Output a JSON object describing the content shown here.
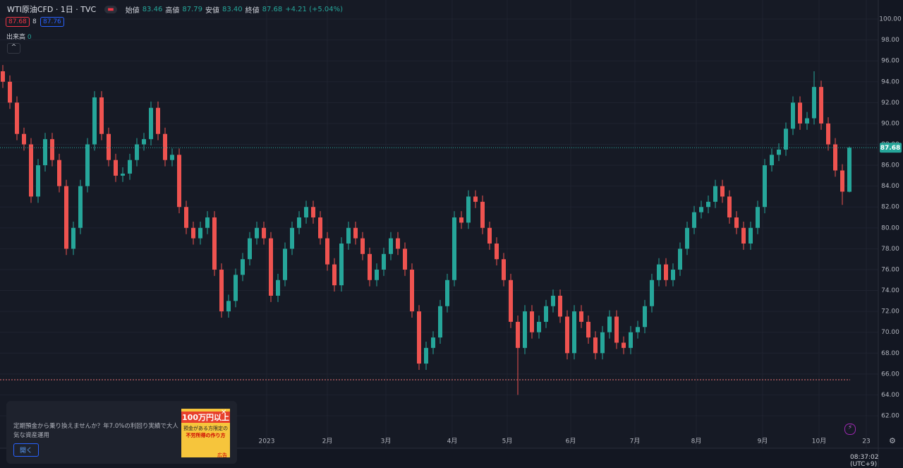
{
  "header": {
    "symbol": "WTI原油CFD · 1日 · TVC",
    "open_label": "始値",
    "open": "83.46",
    "high_label": "高値",
    "high": "87.79",
    "low_label": "安値",
    "low": "83.40",
    "close_label": "終値",
    "close": "87.68",
    "change": "+4.21 (+5.04%)",
    "bid": "87.68",
    "spread": "8",
    "ask": "87.76",
    "volume_label": "出来高",
    "volume": "0"
  },
  "ad": {
    "text": "定期預金から乗り換えませんか？年7.0%の利回り実績で大人気な資産運用",
    "button": "開く",
    "image_lines": [
      "100万円以上",
      "預金がある方限定の",
      "不労所得の作り方"
    ],
    "image_badge": "広告"
  },
  "clock": "08:37:02 (UTC+9)",
  "chart_data": {
    "type": "candlestick",
    "up_color": "#26a69a",
    "down_color": "#ef5350",
    "grid": true,
    "hline": {
      "value": 65.45,
      "color": "#e57373"
    },
    "open": [
      95,
      94,
      92,
      89,
      88,
      83,
      86,
      88.5,
      86.5,
      84,
      78,
      80,
      84,
      88,
      92.5,
      89,
      86.5,
      85,
      85.2,
      86.5,
      88,
      88.5,
      91.5,
      89,
      86.5,
      87,
      82,
      80,
      79,
      80,
      81,
      76,
      72,
      73,
      75.5,
      77,
      79,
      80,
      79,
      73.5,
      75,
      78,
      80,
      81,
      82,
      81,
      79,
      76.5,
      74.5,
      78.5,
      80,
      79,
      77.5,
      75,
      76,
      77.5,
      79,
      78,
      76,
      72,
      67,
      68.5,
      69.5,
      72.5,
      75,
      81,
      80.5,
      83,
      82.5,
      80,
      78.5,
      77,
      75,
      71,
      68.5,
      72,
      70,
      71,
      72.5,
      73.5,
      71.5,
      68,
      72,
      71,
      69.5,
      68,
      70,
      71.5,
      69,
      68.5,
      70,
      70.5,
      72.5,
      75,
      76.5,
      75,
      76,
      78,
      80,
      81.5,
      82,
      82.5,
      84,
      83,
      81,
      80,
      78.5,
      80,
      82,
      86,
      87,
      87.5,
      89.5,
      92,
      90,
      90.5,
      93.5,
      90,
      88,
      85.5,
      83.46
    ],
    "high": [
      95.6,
      94.6,
      92.6,
      89.6,
      88.6,
      86.6,
      89.1,
      89.1,
      87.1,
      84.6,
      80.6,
      84.6,
      88.6,
      93.1,
      93.1,
      89.6,
      87.1,
      85.8,
      87.1,
      88.6,
      89.1,
      92.1,
      92.1,
      89.6,
      87.6,
      87.6,
      82.6,
      80.6,
      80.6,
      81.6,
      81.6,
      76.6,
      73.6,
      76.1,
      77.6,
      79.6,
      80.6,
      80.6,
      79.6,
      75.6,
      78.6,
      80.6,
      81.6,
      82.6,
      82.6,
      81.6,
      79.6,
      77.1,
      79.1,
      80.6,
      80.6,
      79.6,
      78.1,
      76.6,
      78.1,
      79.6,
      79.6,
      78.6,
      76.6,
      72.6,
      69.1,
      70.1,
      73.1,
      75.6,
      81.6,
      81.6,
      83.6,
      83.6,
      83.1,
      80.6,
      79.1,
      77.6,
      75.6,
      71.6,
      72.6,
      72.6,
      71.6,
      73.1,
      74.1,
      74.1,
      72.1,
      72.6,
      72.6,
      71.6,
      70.1,
      70.6,
      72.1,
      72.1,
      69.6,
      70.6,
      71.1,
      73.1,
      75.6,
      77.1,
      77.1,
      76.6,
      78.6,
      80.6,
      82.1,
      82.6,
      83.1,
      84.6,
      84.6,
      83.6,
      81.6,
      80.6,
      80.6,
      82.6,
      86.6,
      87.6,
      88.1,
      90.1,
      92.6,
      92.6,
      91.1,
      95.0,
      94.1,
      90.6,
      88.6,
      86.1,
      87.79
    ],
    "low": [
      93.4,
      91.4,
      88.4,
      87.4,
      82.4,
      82.4,
      85.4,
      85.9,
      83.4,
      77.4,
      77.4,
      79.4,
      83.4,
      87.4,
      88.4,
      85.9,
      84.4,
      84.4,
      84.6,
      85.9,
      87.4,
      87.9,
      88.4,
      85.9,
      85.9,
      81.4,
      79.4,
      78.4,
      78.4,
      79.4,
      75.4,
      71.4,
      71.4,
      72.4,
      74.9,
      76.4,
      78.4,
      78.4,
      72.9,
      72.9,
      74.4,
      77.4,
      79.4,
      80.4,
      80.4,
      78.4,
      75.9,
      73.9,
      73.9,
      77.9,
      78.4,
      76.9,
      74.4,
      74.4,
      75.4,
      76.9,
      77.4,
      75.4,
      71.4,
      66.4,
      66.4,
      67.9,
      68.9,
      71.9,
      74.4,
      79.9,
      79.9,
      81.9,
      79.4,
      77.9,
      76.4,
      74.4,
      70.4,
      64.0,
      67.9,
      69.4,
      69.4,
      70.4,
      71.9,
      70.9,
      67.4,
      67.4,
      70.4,
      68.9,
      67.4,
      67.4,
      69.4,
      68.4,
      67.9,
      67.9,
      69.4,
      69.9,
      71.9,
      74.4,
      74.4,
      74.4,
      75.4,
      77.4,
      79.4,
      80.9,
      81.4,
      81.9,
      82.4,
      80.4,
      79.4,
      77.9,
      77.9,
      79.4,
      81.4,
      85.4,
      86.4,
      86.9,
      88.9,
      89.4,
      89.4,
      89.9,
      89.4,
      87.4,
      84.9,
      82.2,
      83.4
    ],
    "close": [
      94,
      92,
      89,
      88,
      83,
      86,
      88.5,
      86.5,
      84,
      78,
      80,
      84,
      88,
      92.5,
      89,
      86.5,
      85,
      85.2,
      86.5,
      88,
      88.5,
      91.5,
      89,
      86.5,
      87,
      82,
      80,
      79,
      80,
      81,
      76,
      72,
      73,
      75.5,
      77,
      79,
      80,
      79,
      73.5,
      75,
      78,
      80,
      81,
      82,
      81,
      79,
      76.5,
      74.5,
      78.5,
      80,
      79,
      77.5,
      75,
      76,
      77.5,
      79,
      78,
      76,
      72,
      67,
      68.5,
      69.5,
      72.5,
      75,
      81,
      80.5,
      83,
      82.5,
      80,
      78.5,
      77,
      75,
      71,
      68.5,
      72,
      70,
      71,
      72.5,
      73.5,
      71.5,
      68,
      72,
      71,
      69.5,
      68,
      70,
      71.5,
      69,
      68.5,
      70,
      70.5,
      72.5,
      75,
      76.5,
      75,
      76,
      78,
      80,
      81.5,
      82,
      82.5,
      84,
      83,
      81,
      80,
      78.5,
      80,
      82,
      86,
      87,
      87.5,
      89.5,
      92,
      90,
      90.5,
      93.5,
      90,
      88,
      85.5,
      83.47,
      87.68
    ],
    "xlim": [
      -0.4,
      124.1
    ],
    "xticks": [
      {
        "value": 37.4,
        "label": "2023"
      },
      {
        "value": 46.0,
        "label": "2月"
      },
      {
        "value": 54.3,
        "label": "3月"
      },
      {
        "value": 63.7,
        "label": "4月"
      },
      {
        "value": 71.5,
        "label": "5月"
      },
      {
        "value": 80.5,
        "label": "6月"
      },
      {
        "value": 89.6,
        "label": "7月"
      },
      {
        "value": 98.3,
        "label": "8月"
      },
      {
        "value": 107.7,
        "label": "9月"
      },
      {
        "value": 115.7,
        "label": "10月"
      },
      {
        "value": 122.4,
        "label": "23"
      }
    ],
    "ylim": [
      58.89,
      101.83
    ],
    "yticks": [
      {
        "value": 62,
        "label": "62.00"
      },
      {
        "value": 64,
        "label": "64.00"
      },
      {
        "value": 66,
        "label": "66.00"
      },
      {
        "value": 68,
        "label": "68.00"
      },
      {
        "value": 70,
        "label": "70.00"
      },
      {
        "value": 72,
        "label": "72.00"
      },
      {
        "value": 74,
        "label": "74.00"
      },
      {
        "value": 76,
        "label": "76.00"
      },
      {
        "value": 78,
        "label": "78.00"
      },
      {
        "value": 80,
        "label": "80.00"
      },
      {
        "value": 82,
        "label": "82.00"
      },
      {
        "value": 84,
        "label": "84.00"
      },
      {
        "value": 86,
        "label": "86.00"
      },
      {
        "value": 88,
        "label": "88.00"
      },
      {
        "value": 90,
        "label": "90.00"
      },
      {
        "value": 92,
        "label": "92.00"
      },
      {
        "value": 94,
        "label": "94.00"
      },
      {
        "value": 96,
        "label": "96.00"
      },
      {
        "value": 98,
        "label": "98.00"
      },
      {
        "value": 100,
        "label": "100.00"
      }
    ]
  }
}
